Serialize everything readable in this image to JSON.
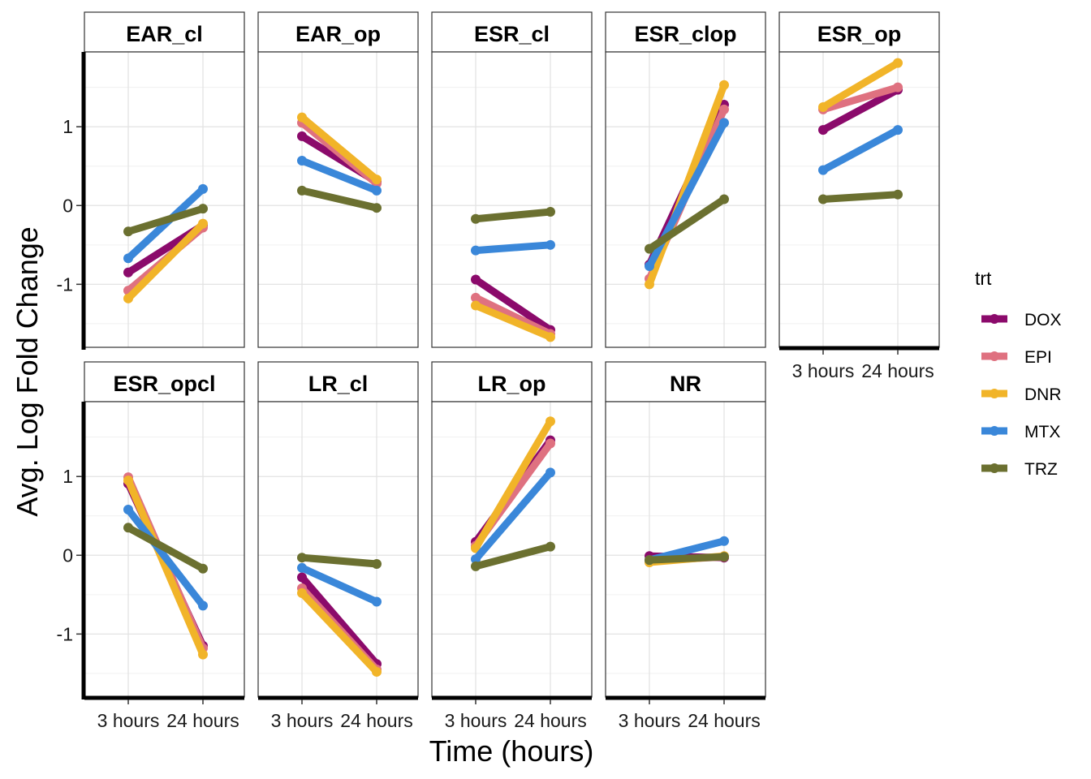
{
  "chart_data": {
    "type": "line",
    "xlabel": "Time (hours)",
    "ylabel": "Avg. Log Fold Change",
    "x": [
      "3 hours",
      "24 hours"
    ],
    "y_ticks": [
      -1,
      0,
      1
    ],
    "ylim": [
      -1.8,
      1.95
    ],
    "grid": true,
    "legend": {
      "title": "trt",
      "position": "right",
      "entries": [
        {
          "name": "DOX",
          "color": "#8b0a6b"
        },
        {
          "name": "EPI",
          "color": "#df7180"
        },
        {
          "name": "DNR",
          "color": "#f1b429"
        },
        {
          "name": "MTX",
          "color": "#3a87d9"
        },
        {
          "name": "TRZ",
          "color": "#6b7030"
        }
      ]
    },
    "panels": [
      {
        "title": "EAR_cl",
        "series": [
          {
            "name": "DOX",
            "values": [
              -0.85,
              -0.25
            ]
          },
          {
            "name": "EPI",
            "values": [
              -1.08,
              -0.28
            ]
          },
          {
            "name": "DNR",
            "values": [
              -1.18,
              -0.23
            ]
          },
          {
            "name": "MTX",
            "values": [
              -0.67,
              0.21
            ]
          },
          {
            "name": "TRZ",
            "values": [
              -0.33,
              -0.04
            ]
          }
        ]
      },
      {
        "title": "EAR_op",
        "series": [
          {
            "name": "DOX",
            "values": [
              0.88,
              0.3
            ]
          },
          {
            "name": "EPI",
            "values": [
              1.05,
              0.28
            ]
          },
          {
            "name": "DNR",
            "values": [
              1.12,
              0.33
            ]
          },
          {
            "name": "MTX",
            "values": [
              0.57,
              0.19
            ]
          },
          {
            "name": "TRZ",
            "values": [
              0.19,
              -0.03
            ]
          }
        ]
      },
      {
        "title": "ESR_cl",
        "series": [
          {
            "name": "DOX",
            "values": [
              -0.94,
              -1.58
            ]
          },
          {
            "name": "EPI",
            "values": [
              -1.17,
              -1.63
            ]
          },
          {
            "name": "DNR",
            "values": [
              -1.27,
              -1.67
            ]
          },
          {
            "name": "MTX",
            "values": [
              -0.57,
              -0.5
            ]
          },
          {
            "name": "TRZ",
            "values": [
              -0.17,
              -0.08
            ]
          }
        ]
      },
      {
        "title": "ESR_clop",
        "series": [
          {
            "name": "DOX",
            "values": [
              -0.75,
              1.28
            ]
          },
          {
            "name": "EPI",
            "values": [
              -0.93,
              1.22
            ]
          },
          {
            "name": "DNR",
            "values": [
              -1.0,
              1.53
            ]
          },
          {
            "name": "MTX",
            "values": [
              -0.77,
              1.05
            ]
          },
          {
            "name": "TRZ",
            "values": [
              -0.55,
              0.08
            ]
          }
        ]
      },
      {
        "title": "ESR_op",
        "series": [
          {
            "name": "DOX",
            "values": [
              0.96,
              1.47
            ]
          },
          {
            "name": "EPI",
            "values": [
              1.22,
              1.5
            ]
          },
          {
            "name": "DNR",
            "values": [
              1.25,
              1.81
            ]
          },
          {
            "name": "MTX",
            "values": [
              0.45,
              0.96
            ]
          },
          {
            "name": "TRZ",
            "values": [
              0.08,
              0.14
            ]
          }
        ]
      },
      {
        "title": "ESR_opcl",
        "series": [
          {
            "name": "DOX",
            "values": [
              0.91,
              -1.15
            ]
          },
          {
            "name": "EPI",
            "values": [
              0.99,
              -1.18
            ]
          },
          {
            "name": "DNR",
            "values": [
              0.95,
              -1.26
            ]
          },
          {
            "name": "MTX",
            "values": [
              0.58,
              -0.64
            ]
          },
          {
            "name": "TRZ",
            "values": [
              0.35,
              -0.17
            ]
          }
        ]
      },
      {
        "title": "LR_cl",
        "series": [
          {
            "name": "DOX",
            "values": [
              -0.28,
              -1.38
            ]
          },
          {
            "name": "EPI",
            "values": [
              -0.42,
              -1.45
            ]
          },
          {
            "name": "DNR",
            "values": [
              -0.48,
              -1.48
            ]
          },
          {
            "name": "MTX",
            "values": [
              -0.16,
              -0.59
            ]
          },
          {
            "name": "TRZ",
            "values": [
              -0.03,
              -0.11
            ]
          }
        ]
      },
      {
        "title": "LR_op",
        "series": [
          {
            "name": "DOX",
            "values": [
              0.17,
              1.46
            ]
          },
          {
            "name": "EPI",
            "values": [
              0.12,
              1.42
            ]
          },
          {
            "name": "DNR",
            "values": [
              0.09,
              1.7
            ]
          },
          {
            "name": "MTX",
            "values": [
              -0.05,
              1.05
            ]
          },
          {
            "name": "TRZ",
            "values": [
              -0.14,
              0.11
            ]
          }
        ]
      },
      {
        "title": "NR",
        "series": [
          {
            "name": "DOX",
            "values": [
              -0.01,
              -0.03
            ]
          },
          {
            "name": "EPI",
            "values": [
              -0.07,
              -0.02
            ]
          },
          {
            "name": "DNR",
            "values": [
              -0.09,
              -0.01
            ]
          },
          {
            "name": "MTX",
            "values": [
              -0.06,
              0.18
            ]
          },
          {
            "name": "TRZ",
            "values": [
              -0.06,
              -0.02
            ]
          }
        ]
      }
    ]
  }
}
